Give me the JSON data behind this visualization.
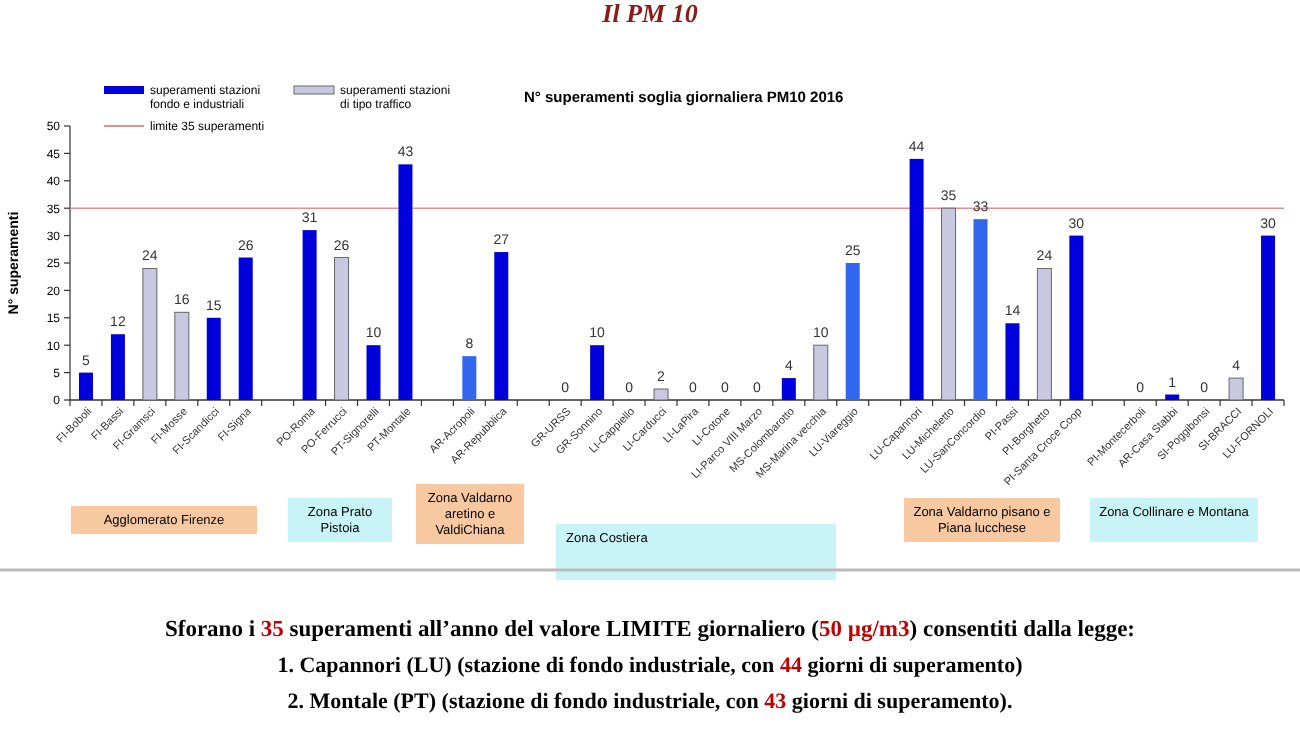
{
  "chart_data": {
    "type": "bar",
    "title": "Il PM 10",
    "subtitle": "N° superamenti soglia giornaliera PM10 2016",
    "ylabel": "N° superamenti",
    "categories": [
      "FI-Boboli",
      "FI-Bassi",
      "FI-Gramsci",
      "FI-Mosse",
      "FI-Scandicci",
      "FI-Signa",
      null,
      "PO-Roma",
      "PO-Ferrucci",
      "PT-Signorelli",
      "PT-Montale",
      null,
      "AR-Acropoli",
      "AR-Repubblica",
      null,
      "GR-URSS",
      "GR-Sonnino",
      "LI-Cappiello",
      "LI-Carducci",
      "LI-LaPira",
      "LI-Cotone",
      "LI-Parco VIII Marzo",
      "MS-Colombarotto",
      "MS-Marina vecchia",
      "LU-Viareggio",
      null,
      "LU-Capannori",
      "LU-Micheletto",
      "LU-SanConcordio",
      "PI-Passi",
      "PI-Borghetto",
      "PI-Santa Croce Coop",
      null,
      "PI-Montecerboli",
      "AR-Casa Stabbi",
      "SI-Poggibonsi",
      "SI-BRACCI",
      "LU-FORNOLI"
    ],
    "series": [
      {
        "name": "superamenti stazioni fondo e industriali",
        "color": "#0000dd",
        "values": [
          5,
          12,
          null,
          null,
          15,
          26,
          null,
          31,
          null,
          10,
          43,
          null,
          8,
          27,
          null,
          0,
          10,
          0,
          null,
          0,
          0,
          0,
          4,
          null,
          25,
          null,
          44,
          null,
          33,
          14,
          null,
          30,
          null,
          0,
          1,
          0,
          null,
          30
        ],
        "colors": [
          "#0000dd",
          "#0000dd",
          null,
          null,
          "#0000dd",
          "#0000dd",
          null,
          "#0000dd",
          null,
          "#0000dd",
          "#0000dd",
          null,
          "#3366ee",
          "#0000dd",
          null,
          "#0000dd",
          "#0000dd",
          "#0000dd",
          null,
          "#0000dd",
          "#0000dd",
          "#0000dd",
          "#0000dd",
          null,
          "#3366ee",
          null,
          "#0000dd",
          null,
          "#3366ee",
          "#0000dd",
          null,
          "#0000dd",
          null,
          "#0000dd",
          "#0000dd",
          "#0000dd",
          null,
          "#0000dd"
        ]
      },
      {
        "name": "superamenti stazioni di tipo traffico",
        "color": "#c8c8e0",
        "values": [
          null,
          null,
          24,
          16,
          null,
          null,
          null,
          null,
          26,
          null,
          null,
          null,
          null,
          null,
          null,
          null,
          null,
          null,
          2,
          null,
          null,
          null,
          null,
          10,
          null,
          null,
          null,
          35,
          null,
          null,
          24,
          null,
          null,
          null,
          null,
          null,
          4,
          null
        ]
      }
    ],
    "ylim": [
      0,
      50
    ],
    "yticks": [
      0,
      5,
      10,
      15,
      20,
      25,
      30,
      35,
      40,
      45,
      50
    ],
    "grid": false,
    "legend": "top left",
    "data_labels": true,
    "ref_lines": [
      {
        "axis": "y",
        "value": 35,
        "label": "limite 35 superamenti",
        "color": "#e09090"
      }
    ],
    "annotations": [
      "Agglomerato Firenze",
      "Zona Prato Pistoia",
      "Zona Valdarno aretino e ValdiChiana",
      "Zona Costiera",
      "Zona Valdarno pisano e Piana lucchese",
      "Zona Collinare e Montana",
      "Sforano i 35 superamenti all’anno del valore LIMITE giornaliero (50 µg/m3) consentiti dalla legge:",
      "1. Capannori (LU) (stazione di fondo industriale, con 44 giorni di superamento)",
      "2. Montale (PT) (stazione di fondo industriale, con 43 giorni di superamento)."
    ]
  }
}
